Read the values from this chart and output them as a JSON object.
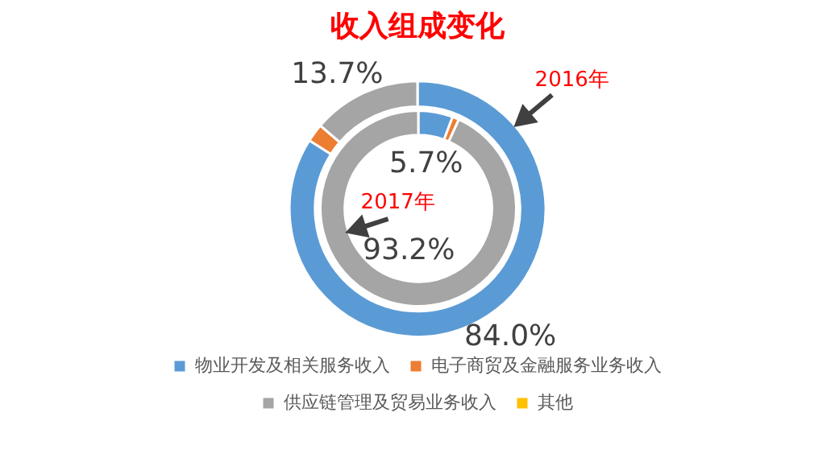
{
  "chart_data": [
    {
      "type": "donut",
      "title": "收入组成变化",
      "categories": [
        "物业开发及相关服务收入",
        "电子商贸及金融服务业务收入",
        "供应链管理及贸易业务收入",
        "其他"
      ],
      "colors": [
        "#5b9bd5",
        "#ed7d31",
        "#a5a5a5",
        "#ffc000"
      ],
      "series": [
        {
          "name": "2016年",
          "values": [
            84.0,
            2.3,
            13.7,
            0
          ],
          "value_labels": [
            "84.0%",
            null,
            "13.7%",
            null
          ]
        }
      ],
      "legend": "bottom"
    },
    {
      "type": "donut",
      "categories": [
        null,
        null,
        null,
        null
      ],
      "colors": [
        "#5b9bd5",
        "#ed7d31",
        "#a5a5a5",
        "#ffc000"
      ],
      "series": [
        {
          "name": "2017年",
          "values": [
            5.7,
            1.1,
            93.2,
            0
          ],
          "value_labels": [
            "5.7%",
            null,
            "93.2%",
            null
          ]
        }
      ]
    }
  ]
}
